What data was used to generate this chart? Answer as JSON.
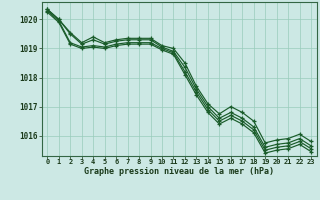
{
  "xlabel": "Graphe pression niveau de la mer (hPa)",
  "bg_color": "#cce8e4",
  "grid_color": "#99ccbb",
  "line_color": "#1a5c2a",
  "ylim": [
    1015.3,
    1020.6
  ],
  "xlim": [
    -0.5,
    23.5
  ],
  "yticks": [
    1016,
    1017,
    1018,
    1019,
    1020
  ],
  "xticks": [
    0,
    1,
    2,
    3,
    4,
    5,
    6,
    7,
    8,
    9,
    10,
    11,
    12,
    13,
    14,
    15,
    16,
    17,
    18,
    19,
    20,
    21,
    22,
    23
  ],
  "line1": [
    1020.35,
    1020.0,
    1019.55,
    1019.2,
    1019.4,
    1019.2,
    1019.3,
    1019.35,
    1019.35,
    1019.35,
    1019.1,
    1019.0,
    1018.5,
    1017.7,
    1017.1,
    1016.75,
    1017.0,
    1016.8,
    1016.5,
    1015.75,
    1015.85,
    1015.9,
    1016.05,
    1015.8
  ],
  "line2": [
    1020.35,
    1020.0,
    1019.5,
    1019.15,
    1019.3,
    1019.15,
    1019.25,
    1019.3,
    1019.3,
    1019.3,
    1019.05,
    1018.9,
    1018.35,
    1017.6,
    1017.0,
    1016.6,
    1016.8,
    1016.6,
    1016.3,
    1015.6,
    1015.7,
    1015.75,
    1015.9,
    1015.65
  ],
  "line3": [
    1020.3,
    1019.95,
    1019.2,
    1019.05,
    1019.1,
    1019.05,
    1019.15,
    1019.2,
    1019.2,
    1019.2,
    1019.0,
    1018.85,
    1018.2,
    1017.5,
    1016.9,
    1016.5,
    1016.7,
    1016.5,
    1016.2,
    1015.5,
    1015.6,
    1015.65,
    1015.8,
    1015.55
  ],
  "line4": [
    1020.25,
    1019.9,
    1019.15,
    1019.0,
    1019.05,
    1019.0,
    1019.1,
    1019.15,
    1019.15,
    1019.15,
    1018.95,
    1018.8,
    1018.1,
    1017.4,
    1016.8,
    1016.4,
    1016.6,
    1016.4,
    1016.1,
    1015.4,
    1015.5,
    1015.55,
    1015.7,
    1015.45
  ]
}
